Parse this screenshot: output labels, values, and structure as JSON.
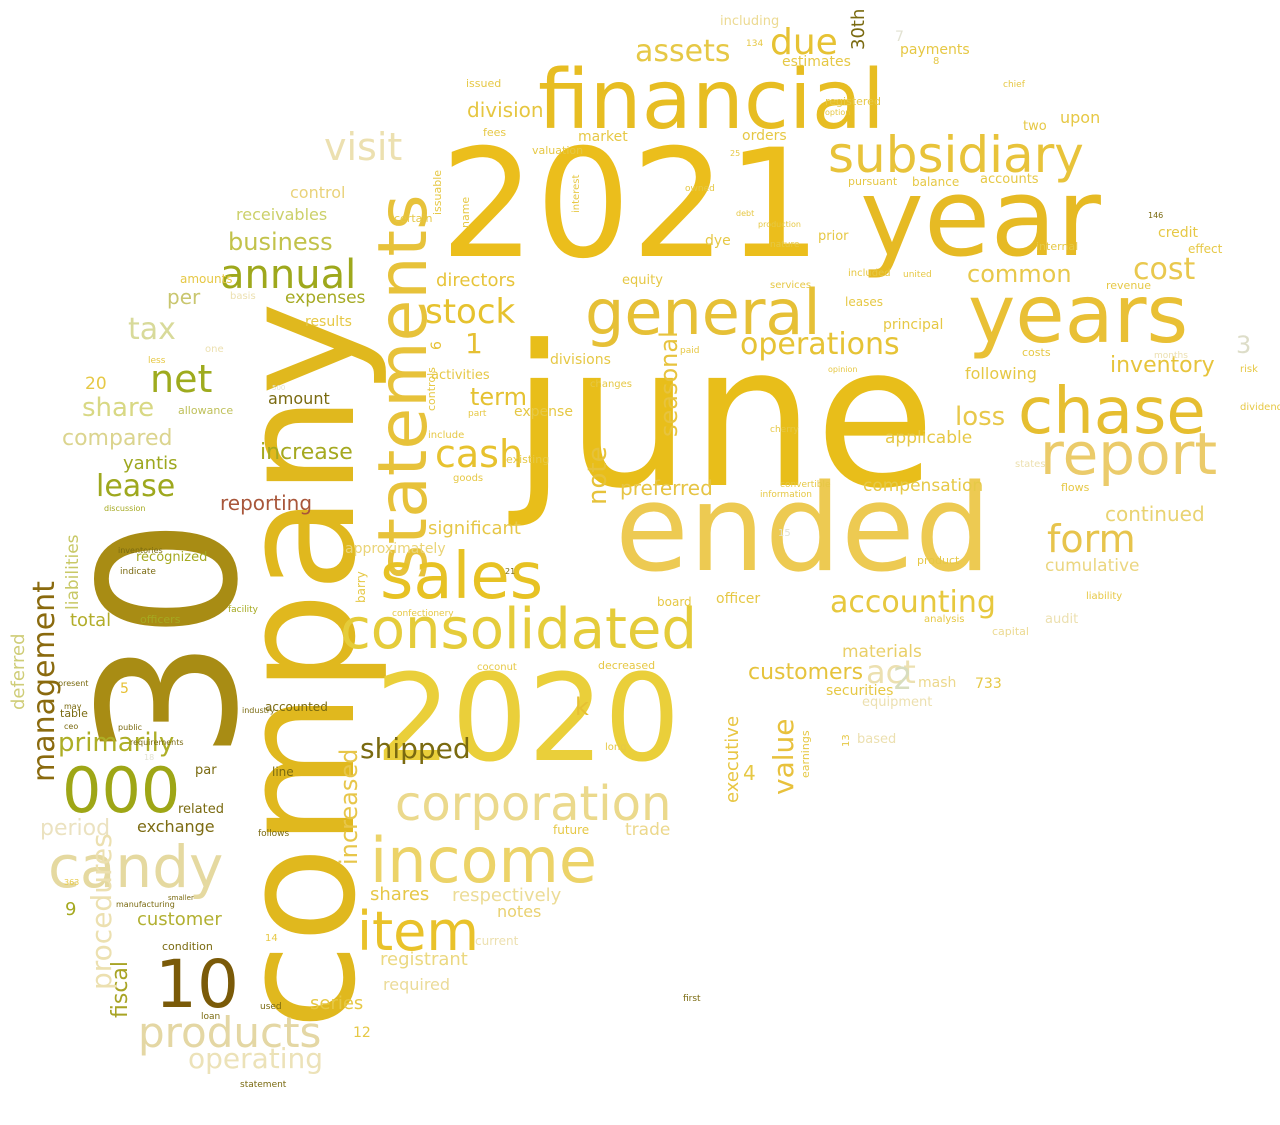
{
  "words": [
    {
      "text": "june",
      "color": "#E8BE1A"
    },
    {
      "text": "company",
      "color": "#E0B81E"
    },
    {
      "text": "30",
      "color": "#A88C14"
    },
    {
      "text": "2021",
      "color": "#EBBE1C"
    },
    {
      "text": "year",
      "color": "#E6BA24"
    },
    {
      "text": "ended",
      "color": "#EDCA52"
    },
    {
      "text": "2020",
      "color": "#EACF3A"
    },
    {
      "text": "financial",
      "color": "#E7BD22"
    },
    {
      "text": "statements",
      "color": "#E7C23A"
    },
    {
      "text": "years",
      "color": "#E9C035"
    },
    {
      "text": "general",
      "color": "#E6C036"
    },
    {
      "text": "consolidated",
      "color": "#E5CC3A"
    },
    {
      "text": "sales",
      "color": "#E7C224"
    },
    {
      "text": "income",
      "color": "#ECD368"
    },
    {
      "text": "corporation",
      "color": "#EBD98C"
    },
    {
      "text": "candy",
      "color": "#E5D9A0"
    },
    {
      "text": "chase",
      "color": "#E6BE30"
    },
    {
      "text": "report",
      "color": "#EBCB6A"
    },
    {
      "text": "subsidiary",
      "color": "#E8C33A"
    },
    {
      "text": "item",
      "color": "#E9C22A"
    },
    {
      "text": "products",
      "color": "#E4D7A4"
    },
    {
      "text": "000",
      "color": "#9EA616"
    },
    {
      "text": "10",
      "color": "#7A5A08"
    },
    {
      "text": "annual",
      "color": "#9EA81C"
    },
    {
      "text": "management",
      "color": "#8A6A0E"
    },
    {
      "text": "due",
      "color": "#E6C233"
    },
    {
      "text": "assets",
      "color": "#E6C845"
    },
    {
      "text": "stock",
      "color": "#E6C22E"
    },
    {
      "text": "cash",
      "color": "#E7C22E"
    },
    {
      "text": "form",
      "color": "#E7C44C"
    },
    {
      "text": "accounting",
      "color": "#E7C83E"
    },
    {
      "text": "operations",
      "color": "#E6C335"
    },
    {
      "text": "net",
      "color": "#9EAB1E"
    },
    {
      "text": "tax",
      "color": "#D8DA9A"
    },
    {
      "text": "lease",
      "color": "#9EA81E"
    },
    {
      "text": "operating",
      "color": "#ECE2B8"
    },
    {
      "text": "cost",
      "color": "#E9C84E"
    },
    {
      "text": "common",
      "color": "#E8C84A"
    },
    {
      "text": "inventory",
      "color": "#E7C43C"
    },
    {
      "text": "loss",
      "color": "#E8C84A"
    },
    {
      "text": "value",
      "color": "#E8C13C"
    },
    {
      "text": "primarily",
      "color": "#ADAE26"
    },
    {
      "text": "share",
      "color": "#D8D884"
    },
    {
      "text": "period",
      "color": "#EBE2C0"
    },
    {
      "text": "compared",
      "color": "#DBD48E"
    },
    {
      "text": "yantis",
      "color": "#9DA71E"
    },
    {
      "text": "business",
      "color": "#C2C24A"
    },
    {
      "text": "receivables",
      "color": "#CCD06A"
    },
    {
      "text": "increase",
      "color": "#A5A920"
    },
    {
      "text": "reporting",
      "color": "#A8563A"
    },
    {
      "text": "expenses",
      "color": "#A5AA22"
    },
    {
      "text": "division",
      "color": "#E6C640"
    },
    {
      "text": "directors",
      "color": "#E7C43A"
    },
    {
      "text": "term",
      "color": "#E5C232"
    },
    {
      "text": "note",
      "color": "#E6C23A"
    },
    {
      "text": "seasonal",
      "color": "#E7C33E"
    },
    {
      "text": "preferred",
      "color": "#E6C444"
    },
    {
      "text": "significant",
      "color": "#E6C748"
    },
    {
      "text": "customers",
      "color": "#E6C33C"
    },
    {
      "text": "materials",
      "color": "#E9CF68"
    },
    {
      "text": "executive",
      "color": "#E8C643"
    },
    {
      "text": "increased",
      "color": "#E7C64A"
    },
    {
      "text": "shares",
      "color": "#E6C747"
    },
    {
      "text": "respectively",
      "color": "#ECDC96"
    },
    {
      "text": "notes",
      "color": "#E9D170"
    },
    {
      "text": "registrant",
      "color": "#EBD880"
    },
    {
      "text": "series",
      "color": "#E6C845"
    },
    {
      "text": "required",
      "color": "#EBDB98"
    },
    {
      "text": "customer",
      "color": "#B2B032"
    },
    {
      "text": "fiscal",
      "color": "#A8A425"
    },
    {
      "text": "exchange",
      "color": "#7C6B12"
    },
    {
      "text": "total",
      "color": "#B2AD2A"
    },
    {
      "text": "deferred",
      "color": "#CFCD78"
    },
    {
      "text": "liabilities",
      "color": "#C8C866"
    },
    {
      "text": "approximately",
      "color": "#EAD477"
    },
    {
      "text": "compensation",
      "color": "#E6C947"
    },
    {
      "text": "continued",
      "color": "#E9D372"
    },
    {
      "text": "cumulative",
      "color": "#EBD680"
    },
    {
      "text": "applicable",
      "color": "#E6C845"
    },
    {
      "text": "following",
      "color": "#E6C845"
    },
    {
      "text": "upon",
      "color": "#E6C845"
    },
    {
      "text": "credit",
      "color": "#E6C845"
    },
    {
      "text": "principal",
      "color": "#E6C845"
    },
    {
      "text": "payments",
      "color": "#E6C845"
    },
    {
      "text": "estimates",
      "color": "#E6C845"
    },
    {
      "text": "including",
      "color": "#ECDA92"
    },
    {
      "text": "market",
      "color": "#E6C845"
    },
    {
      "text": "orders",
      "color": "#E6C845"
    },
    {
      "text": "control",
      "color": "#E9D27A"
    },
    {
      "text": "results",
      "color": "#E6C845"
    },
    {
      "text": "per",
      "color": "#C9C66E"
    },
    {
      "text": "amount",
      "color": "#7A6A10"
    },
    {
      "text": "allowance",
      "color": "#BFC05A"
    },
    {
      "text": "mash",
      "color": "#ECD88C"
    },
    {
      "text": "officer",
      "color": "#E6C845"
    },
    {
      "text": "securities",
      "color": "#E6C845"
    },
    {
      "text": "board",
      "color": "#E6C845"
    },
    {
      "text": "trade",
      "color": "#ECD88C"
    },
    {
      "text": "future",
      "color": "#E6C845"
    },
    {
      "text": "current",
      "color": "#ECE0B0"
    },
    {
      "text": "goods",
      "color": "#E6C845"
    },
    {
      "text": "existing",
      "color": "#E6C845"
    },
    {
      "text": "divisions",
      "color": "#E6C845"
    },
    {
      "text": "activities",
      "color": "#E6C845"
    },
    {
      "text": "expense",
      "color": "#E6C845"
    },
    {
      "text": "equity",
      "color": "#E6C845"
    },
    {
      "text": "dye",
      "color": "#E6C845"
    },
    {
      "text": "prior",
      "color": "#E6C845"
    },
    {
      "text": "balance",
      "color": "#E6C845"
    },
    {
      "text": "accounts",
      "color": "#E6C845"
    },
    {
      "text": "pursuant",
      "color": "#E6C845"
    },
    {
      "text": "costs",
      "color": "#E6C845"
    },
    {
      "text": "flows",
      "color": "#E6C845"
    },
    {
      "text": "revenue",
      "color": "#E6C845"
    },
    {
      "text": "two",
      "color": "#E6C845"
    },
    {
      "text": "internal",
      "color": "#E6C845"
    },
    {
      "text": "analysis",
      "color": "#E6C845"
    },
    {
      "text": "capital",
      "color": "#ECDA92"
    },
    {
      "text": "audit",
      "color": "#ECE0B0"
    },
    {
      "text": "equipment",
      "color": "#ECE0B0"
    },
    {
      "text": "based",
      "color": "#ECE0B0"
    },
    {
      "text": "line",
      "color": "#7A6A10"
    },
    {
      "text": "par",
      "color": "#7A6A10"
    },
    {
      "text": "related",
      "color": "#7A6A10"
    },
    {
      "text": "recognized",
      "color": "#A5A920"
    },
    {
      "text": "officers",
      "color": "#A5A920"
    },
    {
      "text": "table",
      "color": "#7A6A10"
    },
    {
      "text": "requirements",
      "color": "#7A6A10"
    },
    {
      "text": "accounted",
      "color": "#7A6A10"
    },
    {
      "text": "condition",
      "color": "#7A6A10"
    },
    {
      "text": "used",
      "color": "#7A6A10"
    },
    {
      "text": "decreased",
      "color": "#E6C845"
    },
    {
      "text": "coconut",
      "color": "#E6C845"
    },
    {
      "text": "confectionery",
      "color": "#E6C845"
    },
    {
      "text": "long",
      "color": "#E6C845"
    },
    {
      "text": "barry",
      "color": "#E6C845"
    },
    {
      "text": "earnings",
      "color": "#E6C845"
    },
    {
      "text": "information",
      "color": "#E6C845"
    },
    {
      "text": "convertible",
      "color": "#E6C845"
    },
    {
      "text": "cherry",
      "color": "#E6C845"
    },
    {
      "text": "nature",
      "color": "#E6C845"
    },
    {
      "text": "production",
      "color": "#E6C845"
    },
    {
      "text": "debt",
      "color": "#E6C845"
    },
    {
      "text": "owned",
      "color": "#E6C845"
    },
    {
      "text": "valuation",
      "color": "#E6C845"
    },
    {
      "text": "fees",
      "color": "#E6C845"
    },
    {
      "text": "certain",
      "color": "#E6C845"
    },
    {
      "text": "name",
      "color": "#E6C845"
    },
    {
      "text": "issuable",
      "color": "#E6C845"
    },
    {
      "text": "interest",
      "color": "#E6C845"
    },
    {
      "text": "include",
      "color": "#E6C845"
    },
    {
      "text": "controls",
      "color": "#E6C845"
    },
    {
      "text": "part",
      "color": "#E6C845"
    },
    {
      "text": "changes",
      "color": "#E6C845"
    },
    {
      "text": "paid",
      "color": "#E6C845"
    },
    {
      "text": "services",
      "color": "#E6C845"
    },
    {
      "text": "included",
      "color": "#E6C845"
    },
    {
      "text": "leases",
      "color": "#E6C845"
    },
    {
      "text": "united",
      "color": "#E6C845"
    },
    {
      "text": "registered",
      "color": "#E6C845"
    },
    {
      "text": "option",
      "color": "#E6C845"
    },
    {
      "text": "opinion",
      "color": "#E6C845"
    },
    {
      "text": "product",
      "color": "#E6C845"
    },
    {
      "text": "liability",
      "color": "#E6C845"
    },
    {
      "text": "states",
      "color": "#ECE0B0"
    },
    {
      "text": "dividends",
      "color": "#E6C845"
    },
    {
      "text": "risk",
      "color": "#E6C845"
    },
    {
      "text": "effect",
      "color": "#E6C845"
    },
    {
      "text": "months",
      "color": "#ECE0B0"
    },
    {
      "text": "chief",
      "color": "#E6C845"
    },
    {
      "text": "issued",
      "color": "#E6C845"
    },
    {
      "text": "amounts",
      "color": "#E6C845"
    },
    {
      "text": "basis",
      "color": "#ECE0B0"
    },
    {
      "text": "one",
      "color": "#ECE0B0"
    },
    {
      "text": "less",
      "color": "#E6C845"
    },
    {
      "text": "discussion",
      "color": "#A5A920"
    },
    {
      "text": "facility",
      "color": "#A5A920"
    },
    {
      "text": "indicate",
      "color": "#7A6A10"
    },
    {
      "text": "inventories",
      "color": "#7A6A10"
    },
    {
      "text": "present",
      "color": "#7A6A10"
    },
    {
      "text": "loan",
      "color": "#7A6A10"
    },
    {
      "text": "manufacturing",
      "color": "#7A6A10"
    },
    {
      "text": "follows",
      "color": "#7A6A10"
    },
    {
      "text": "industry",
      "color": "#7A6A10"
    },
    {
      "text": "public",
      "color": "#7A6A10"
    },
    {
      "text": "may",
      "color": "#7A6A10"
    },
    {
      "text": "ceo",
      "color": "#7A6A10"
    },
    {
      "text": "smaller",
      "color": "#7A6A10"
    },
    {
      "text": "30th",
      "color": "#7A6A10"
    },
    {
      "text": "first",
      "color": "#7A6A10"
    },
    {
      "text": "statement",
      "color": "#7A6A10"
    },
    {
      "text": "shipped",
      "color": "#7A6A10"
    },
    {
      "text": "act",
      "color": "#ECE0B0"
    },
    {
      "text": "visit",
      "color": "#ECE0B0"
    },
    {
      "text": "procedures",
      "color": "#ECE0B0"
    },
    {
      "text": "k",
      "color": "#E6C033"
    },
    {
      "text": "1",
      "color": "#E6C033"
    },
    {
      "text": "2",
      "color": "#D8DDBE"
    },
    {
      "text": "3",
      "color": "#DDDDC8"
    },
    {
      "text": "4",
      "color": "#E6C845"
    },
    {
      "text": "5",
      "color": "#E6C033"
    },
    {
      "text": "6",
      "color": "#E6C033"
    },
    {
      "text": "7",
      "color": "#E2E2D2"
    },
    {
      "text": "8",
      "color": "#E6C845"
    },
    {
      "text": "9",
      "color": "#A5A920"
    },
    {
      "text": "12",
      "color": "#E6C845"
    },
    {
      "text": "13",
      "color": "#E6C845"
    },
    {
      "text": "14",
      "color": "#E6C845"
    },
    {
      "text": "15",
      "color": "#E2E2D2"
    },
    {
      "text": "18",
      "color": "#E2E2D2"
    },
    {
      "text": "20",
      "color": "#E6C845"
    },
    {
      "text": "21",
      "color": "#7A6A10"
    },
    {
      "text": "25",
      "color": "#E6C845"
    },
    {
      "text": "146",
      "color": "#7A6A10"
    },
    {
      "text": "500",
      "color": "#E2E2D2"
    },
    {
      "text": "363",
      "color": "#E6C845"
    },
    {
      "text": "134",
      "color": "#E6C845"
    },
    {
      "text": "733",
      "color": "#E6C845"
    },
    {
      "text": "400",
      "color": "#7A6A10"
    },
    {
      "text": "299",
      "color": "#7A6A10"
    },
    {
      "text": "11",
      "color": "#E6C845"
    },
    {
      "text": "b",
      "color": "#ECE0B0"
    }
  ]
}
